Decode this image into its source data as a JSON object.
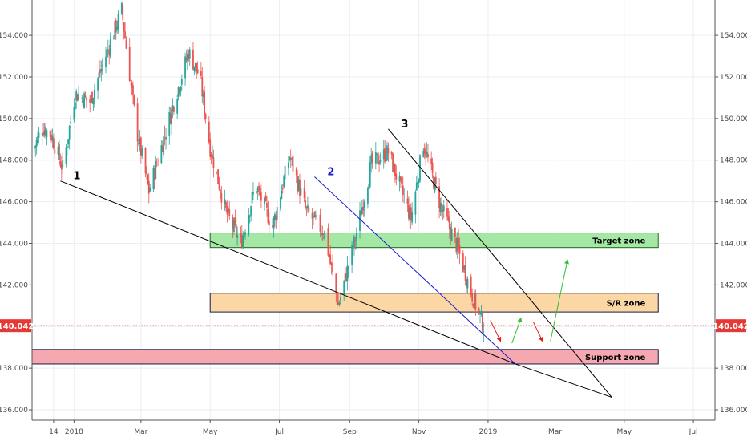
{
  "chart_data": {
    "type": "candlestick",
    "instrument_scale": "price",
    "ylim": [
      135.5,
      155.7
    ],
    "y_ticks": [
      136,
      138,
      140,
      142,
      144,
      146,
      148,
      150,
      152,
      154
    ],
    "y_tick_labels": [
      "136.000",
      "138.000",
      "140.000",
      "142.000",
      "144.000",
      "146.000",
      "148.000",
      "150.000",
      "152.000",
      "154.000"
    ],
    "x_range": [
      "2017-11-25",
      "2019-07-20"
    ],
    "x_ticks": [
      {
        "label": "14",
        "date": "2017-12-14"
      },
      {
        "label": "2018",
        "date": "2018-01-01"
      },
      {
        "label": "Mar",
        "date": "2018-03-01"
      },
      {
        "label": "May",
        "date": "2018-05-01"
      },
      {
        "label": "Jul",
        "date": "2018-07-01"
      },
      {
        "label": "Sep",
        "date": "2018-09-01"
      },
      {
        "label": "Nov",
        "date": "2018-11-01"
      },
      {
        "label": "2019",
        "date": "2019-01-01"
      },
      {
        "label": "Mar",
        "date": "2019-03-01"
      },
      {
        "label": "May",
        "date": "2019-05-01"
      },
      {
        "label": "Jul",
        "date": "2019-07-01"
      }
    ],
    "last_price": 140.042,
    "last_price_label": "140.042",
    "price_waypoints": [
      {
        "date": "2017-11-27",
        "close": 148.6
      },
      {
        "date": "2017-12-04",
        "close": 149.6
      },
      {
        "date": "2017-12-12",
        "close": 149.2
      },
      {
        "date": "2017-12-22",
        "close": 147.6
      },
      {
        "date": "2018-01-02",
        "close": 151.2
      },
      {
        "date": "2018-01-15",
        "close": 150.8
      },
      {
        "date": "2018-02-01",
        "close": 153.5
      },
      {
        "date": "2018-02-12",
        "close": 155.2
      },
      {
        "date": "2018-02-25",
        "close": 149.5
      },
      {
        "date": "2018-03-08",
        "close": 146.5
      },
      {
        "date": "2018-03-25",
        "close": 149.8
      },
      {
        "date": "2018-04-12",
        "close": 153.2
      },
      {
        "date": "2018-04-22",
        "close": 152.0
      },
      {
        "date": "2018-05-01",
        "close": 148.6
      },
      {
        "date": "2018-05-15",
        "close": 145.5
      },
      {
        "date": "2018-05-28",
        "close": 144.0
      },
      {
        "date": "2018-06-10",
        "close": 146.8
      },
      {
        "date": "2018-06-25",
        "close": 144.8
      },
      {
        "date": "2018-07-10",
        "close": 148.2
      },
      {
        "date": "2018-07-25",
        "close": 145.5
      },
      {
        "date": "2018-08-10",
        "close": 144.5
      },
      {
        "date": "2018-08-22",
        "close": 141.0
      },
      {
        "date": "2018-09-05",
        "close": 144.0
      },
      {
        "date": "2018-09-20",
        "close": 147.8
      },
      {
        "date": "2018-10-05",
        "close": 148.4
      },
      {
        "date": "2018-10-25",
        "close": 145.2
      },
      {
        "date": "2018-11-05",
        "close": 148.8
      },
      {
        "date": "2018-11-20",
        "close": 145.8
      },
      {
        "date": "2018-12-05",
        "close": 143.8
      },
      {
        "date": "2018-12-18",
        "close": 141.5
      },
      {
        "date": "2018-12-28",
        "close": 140.042
      }
    ],
    "zones": [
      {
        "label": "Target zone",
        "y_low": 143.8,
        "y_high": 144.5,
        "start": "2018-05-01",
        "end": "2019-05-31",
        "fill": "#a5e8a5",
        "stroke": "#1e6a1e"
      },
      {
        "label": "S/R zone",
        "y_low": 140.7,
        "y_high": 141.6,
        "start": "2018-05-01",
        "end": "2019-05-31",
        "fill": "#fbd7a5",
        "stroke": "#1a1a40"
      },
      {
        "label": "Support zone",
        "y_low": 138.2,
        "y_high": 138.9,
        "start": "2017-11-25",
        "end": "2019-05-31",
        "fill": "#f5a8b0",
        "stroke": "#1a1a40"
      }
    ],
    "trendlines": [
      {
        "label": "1",
        "color": "#000000",
        "from": {
          "date": "2017-12-20",
          "y": 147.0
        },
        "to": {
          "date": "2019-01-25",
          "y": 138.2
        }
      },
      {
        "label": "2",
        "color": "#1a1acc",
        "from": {
          "date": "2018-08-01",
          "y": 147.2
        },
        "to": {
          "date": "2019-01-25",
          "y": 138.2
        }
      },
      {
        "label": "3",
        "color": "#000000",
        "from": {
          "date": "2018-10-05",
          "y": 149.5
        },
        "to": {
          "date": "2019-04-20",
          "y": 136.6
        }
      },
      {
        "label": "",
        "color": "#000000",
        "from": {
          "date": "2019-04-20",
          "y": 136.6
        },
        "to": {
          "date": "2019-01-25",
          "y": 138.2
        }
      }
    ],
    "projection_arrows": [
      {
        "color": "#e02020",
        "from": {
          "date": "2019-01-03",
          "y": 140.3
        },
        "to": {
          "date": "2019-01-12",
          "y": 139.3
        }
      },
      {
        "color": "#30c030",
        "from": {
          "date": "2019-01-22",
          "y": 139.2
        },
        "to": {
          "date": "2019-01-30",
          "y": 140.4
        }
      },
      {
        "color": "#e02020",
        "from": {
          "date": "2019-02-10",
          "y": 140.2
        },
        "to": {
          "date": "2019-02-18",
          "y": 139.3
        }
      },
      {
        "color": "#30c030",
        "from": {
          "date": "2019-02-25",
          "y": 139.3
        },
        "to": {
          "date": "2019-03-12",
          "y": 143.2
        }
      }
    ],
    "colors": {
      "up": "#26a69a",
      "down": "#ef5350",
      "grid": "#eceef3",
      "price_line": "#e53935"
    }
  }
}
